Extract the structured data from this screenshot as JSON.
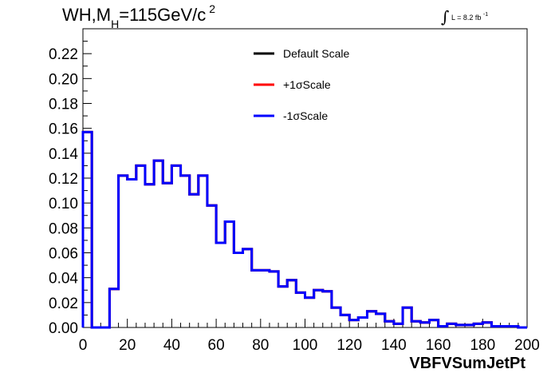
{
  "header": {
    "title_main": "WH,M",
    "title_sub": "H",
    "title_rest": "=115GeV/c",
    "title_sup": "2",
    "lumi_integral": "∫",
    "lumi_text": "L = 8.2 fb",
    "lumi_exp": "-1"
  },
  "chart_data": {
    "type": "step",
    "title": "WH,M_H=115GeV/c^2",
    "xlabel": "VBFVSumJetPt",
    "ylabel": "",
    "xlim": [
      0,
      200
    ],
    "ylim": [
      0,
      0.24
    ],
    "x_ticks": [
      "0",
      "20",
      "40",
      "60",
      "80",
      "100",
      "120",
      "140",
      "160",
      "180",
      "200"
    ],
    "y_ticks": [
      "0.00",
      "0.02",
      "0.04",
      "0.06",
      "0.08",
      "0.10",
      "0.12",
      "0.14",
      "0.16",
      "0.18",
      "0.20",
      "0.22"
    ],
    "bin_width": 4,
    "bin_starts": [
      0,
      4,
      8,
      12,
      16,
      20,
      24,
      28,
      32,
      36,
      40,
      44,
      48,
      52,
      56,
      60,
      64,
      68,
      72,
      76,
      80,
      84,
      88,
      92,
      96,
      100,
      104,
      108,
      112,
      116,
      120,
      124,
      128,
      132,
      136,
      140,
      144,
      148,
      152,
      156,
      160,
      164,
      168,
      172,
      176,
      180,
      184,
      188,
      192,
      196
    ],
    "legend_position": "top-center",
    "series": [
      {
        "name": "Default Scale",
        "color": "#000000",
        "values": [
          0.157,
          0,
          0,
          0.031,
          0.122,
          0.119,
          0.13,
          0.115,
          0.134,
          0.116,
          0.13,
          0.122,
          0.107,
          0.122,
          0.098,
          0.068,
          0.085,
          0.06,
          0.063,
          0.046,
          0.046,
          0.045,
          0.033,
          0.038,
          0.028,
          0.024,
          0.03,
          0.029,
          0.016,
          0.01,
          0.006,
          0.008,
          0.013,
          0.011,
          0.005,
          0.003,
          0.016,
          0.005,
          0.004,
          0.006,
          0.001,
          0.003,
          0.002,
          0.002,
          0.003,
          0.004,
          0.001,
          0.001,
          0.001,
          0
        ]
      },
      {
        "name": "+1σScale",
        "color": "#ff0000",
        "values": [
          0.157,
          0,
          0,
          0.031,
          0.122,
          0.119,
          0.13,
          0.115,
          0.134,
          0.116,
          0.13,
          0.122,
          0.107,
          0.122,
          0.098,
          0.068,
          0.085,
          0.06,
          0.063,
          0.046,
          0.046,
          0.045,
          0.033,
          0.038,
          0.028,
          0.024,
          0.03,
          0.029,
          0.016,
          0.01,
          0.006,
          0.008,
          0.013,
          0.011,
          0.005,
          0.003,
          0.016,
          0.005,
          0.004,
          0.006,
          0.001,
          0.003,
          0.002,
          0.002,
          0.003,
          0.004,
          0.001,
          0.001,
          0.001,
          0
        ]
      },
      {
        "name": "-1σScale",
        "color": "#0000ff",
        "values": [
          0.157,
          0,
          0,
          0.031,
          0.122,
          0.119,
          0.13,
          0.115,
          0.134,
          0.116,
          0.13,
          0.122,
          0.107,
          0.122,
          0.098,
          0.068,
          0.085,
          0.06,
          0.063,
          0.046,
          0.046,
          0.045,
          0.033,
          0.038,
          0.028,
          0.024,
          0.03,
          0.029,
          0.016,
          0.01,
          0.006,
          0.008,
          0.013,
          0.011,
          0.005,
          0.003,
          0.016,
          0.005,
          0.004,
          0.006,
          0.001,
          0.003,
          0.002,
          0.002,
          0.003,
          0.004,
          0.001,
          0.001,
          0.001,
          0
        ]
      }
    ]
  }
}
